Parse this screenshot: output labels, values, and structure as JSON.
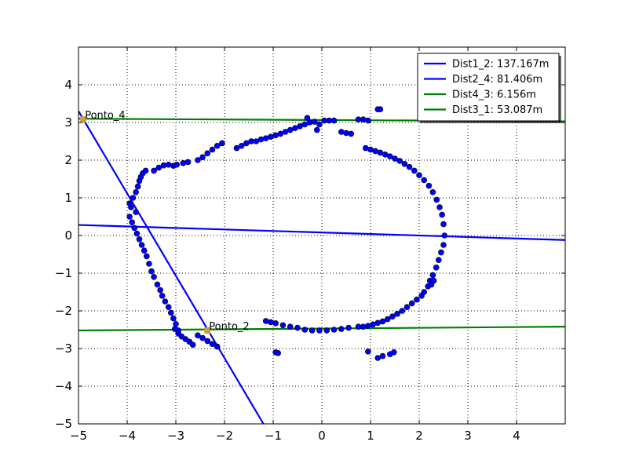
{
  "chart_data": {
    "type": "scatter",
    "title": "",
    "xlabel": "",
    "ylabel": "",
    "xlim": [
      -5,
      5
    ],
    "ylim": [
      -5,
      5
    ],
    "x_ticks": [
      -5,
      -4,
      -3,
      -2,
      -1,
      0,
      1,
      2,
      3,
      4
    ],
    "y_ticks": [
      -5,
      -4,
      -3,
      -2,
      -1,
      0,
      1,
      2,
      3,
      4
    ],
    "grid": true,
    "legend_position": "top-right",
    "colors": {
      "points": "#0000ff",
      "blue_lines": "#0000ff",
      "green_lines": "#008000",
      "markers": "#c8a040"
    },
    "lines": [
      {
        "name": "Dist1_2: 137.167m",
        "color": "#0000ff",
        "points": [
          [
            -5.0,
            0.28
          ],
          [
            5.0,
            -0.12
          ]
        ]
      },
      {
        "name": "Dist2_4: 81.406m",
        "color": "#0000ff",
        "points": [
          [
            -5.0,
            3.3
          ],
          [
            -1.2,
            -5.0
          ]
        ]
      },
      {
        "name": "Dist4_3: 6.156m",
        "color": "#008000",
        "points": [
          [
            -5.0,
            3.1
          ],
          [
            5.0,
            3.03
          ]
        ]
      },
      {
        "name": "Dist3_1: 53.087m",
        "color": "#008000",
        "points": [
          [
            -5.0,
            -2.52
          ],
          [
            5.0,
            -2.42
          ]
        ]
      }
    ],
    "annotations": [
      {
        "text": "Ponto_4",
        "x": -4.9,
        "y": 3.08
      },
      {
        "text": "Ponto_2",
        "x": -2.35,
        "y": -2.52
      }
    ],
    "scatter_points": [
      [
        -3.92,
        0.75
      ],
      [
        -3.95,
        0.85
      ],
      [
        -3.88,
        1.0
      ],
      [
        -3.82,
        1.15
      ],
      [
        -3.78,
        1.3
      ],
      [
        -3.75,
        1.45
      ],
      [
        -3.72,
        1.55
      ],
      [
        -3.68,
        1.65
      ],
      [
        -3.62,
        1.72
      ],
      [
        -3.45,
        1.72
      ],
      [
        -3.35,
        1.8
      ],
      [
        -3.25,
        1.86
      ],
      [
        -3.15,
        1.88
      ],
      [
        -3.05,
        1.85
      ],
      [
        -2.98,
        1.88
      ],
      [
        -2.85,
        1.92
      ],
      [
        -2.75,
        1.95
      ],
      [
        -2.55,
        2.0
      ],
      [
        -2.45,
        2.08
      ],
      [
        -2.35,
        2.18
      ],
      [
        -2.25,
        2.28
      ],
      [
        -2.15,
        2.38
      ],
      [
        -2.05,
        2.45
      ],
      [
        -1.75,
        2.32
      ],
      [
        -1.65,
        2.38
      ],
      [
        -1.55,
        2.45
      ],
      [
        -1.45,
        2.5
      ],
      [
        -1.35,
        2.5
      ],
      [
        -1.25,
        2.55
      ],
      [
        -1.15,
        2.58
      ],
      [
        -1.05,
        2.62
      ],
      [
        -0.95,
        2.66
      ],
      [
        -0.85,
        2.7
      ],
      [
        -0.75,
        2.75
      ],
      [
        -0.65,
        2.8
      ],
      [
        -0.55,
        2.85
      ],
      [
        -0.45,
        2.9
      ],
      [
        -0.35,
        2.95
      ],
      [
        -0.25,
        3.0
      ],
      [
        -0.15,
        3.02
      ],
      [
        -0.05,
        2.95
      ],
      [
        0.05,
        3.05
      ],
      [
        0.15,
        3.05
      ],
      [
        0.25,
        3.05
      ],
      [
        -0.3,
        3.12
      ],
      [
        0.4,
        2.75
      ],
      [
        0.5,
        2.72
      ],
      [
        0.6,
        2.7
      ],
      [
        0.75,
        3.08
      ],
      [
        0.85,
        3.08
      ],
      [
        0.95,
        3.05
      ],
      [
        1.15,
        3.35
      ],
      [
        1.2,
        3.35
      ],
      [
        -0.1,
        2.8
      ],
      [
        0.9,
        2.32
      ],
      [
        1.0,
        2.28
      ],
      [
        1.1,
        2.24
      ],
      [
        1.2,
        2.2
      ],
      [
        1.3,
        2.15
      ],
      [
        1.4,
        2.1
      ],
      [
        1.5,
        2.04
      ],
      [
        1.6,
        1.98
      ],
      [
        1.7,
        1.9
      ],
      [
        1.8,
        1.82
      ],
      [
        1.9,
        1.72
      ],
      [
        2.0,
        1.6
      ],
      [
        2.1,
        1.47
      ],
      [
        2.2,
        1.32
      ],
      [
        2.28,
        1.15
      ],
      [
        2.36,
        0.95
      ],
      [
        2.42,
        0.75
      ],
      [
        2.47,
        0.55
      ],
      [
        2.5,
        0.3
      ],
      [
        2.52,
        0.0
      ],
      [
        2.5,
        -0.25
      ],
      [
        2.45,
        -0.45
      ],
      [
        2.4,
        -0.65
      ],
      [
        2.35,
        -0.85
      ],
      [
        2.28,
        -1.05
      ],
      [
        2.22,
        -1.2
      ],
      [
        2.18,
        -1.35
      ],
      [
        2.1,
        -1.5
      ],
      [
        2.3,
        -1.2
      ],
      [
        2.25,
        -1.3
      ],
      [
        2.05,
        -1.6
      ],
      [
        1.95,
        -1.7
      ],
      [
        1.85,
        -1.8
      ],
      [
        1.75,
        -1.9
      ],
      [
        1.65,
        -2.0
      ],
      [
        1.55,
        -2.08
      ],
      [
        1.45,
        -2.15
      ],
      [
        1.35,
        -2.22
      ],
      [
        1.25,
        -2.28
      ],
      [
        1.15,
        -2.32
      ],
      [
        1.05,
        -2.36
      ],
      [
        0.95,
        -2.4
      ],
      [
        0.85,
        -2.42
      ],
      [
        0.75,
        -2.42
      ],
      [
        0.55,
        -2.45
      ],
      [
        0.4,
        -2.48
      ],
      [
        0.25,
        -2.5
      ],
      [
        0.1,
        -2.52
      ],
      [
        -0.05,
        -2.52
      ],
      [
        -0.2,
        -2.52
      ],
      [
        -0.35,
        -2.5
      ],
      [
        -0.5,
        -2.45
      ],
      [
        -0.65,
        -2.42
      ],
      [
        -0.8,
        -2.38
      ],
      [
        -0.95,
        -2.33
      ],
      [
        -1.05,
        -2.3
      ],
      [
        -1.15,
        -2.27
      ],
      [
        0.95,
        -3.08
      ],
      [
        1.15,
        -3.25
      ],
      [
        1.25,
        -3.2
      ],
      [
        1.4,
        -3.15
      ],
      [
        1.48,
        -3.1
      ],
      [
        -0.95,
        -3.1
      ],
      [
        -0.9,
        -3.12
      ],
      [
        -2.15,
        -2.95
      ],
      [
        -2.25,
        -2.88
      ],
      [
        -2.35,
        -2.8
      ],
      [
        -2.45,
        -2.72
      ],
      [
        -2.55,
        -2.65
      ],
      [
        -2.65,
        -2.9
      ],
      [
        -2.72,
        -2.82
      ],
      [
        -2.8,
        -2.75
      ],
      [
        -2.88,
        -2.68
      ],
      [
        -2.95,
        -2.6
      ],
      [
        -2.95,
        -2.52
      ],
      [
        -3.02,
        -2.48
      ],
      [
        -3.0,
        -2.35
      ],
      [
        -3.05,
        -2.2
      ],
      [
        -3.1,
        -2.05
      ],
      [
        -3.15,
        -1.9
      ],
      [
        -3.22,
        -1.75
      ],
      [
        -3.28,
        -1.6
      ],
      [
        -3.32,
        -1.45
      ],
      [
        -3.38,
        -1.3
      ],
      [
        -3.45,
        -1.1
      ],
      [
        -3.5,
        -0.95
      ],
      [
        -3.55,
        -0.75
      ],
      [
        -3.6,
        -0.55
      ],
      [
        -3.65,
        -0.4
      ],
      [
        -3.7,
        -0.25
      ],
      [
        -3.75,
        -0.1
      ],
      [
        -3.8,
        0.05
      ],
      [
        -3.85,
        0.2
      ],
      [
        -3.9,
        0.35
      ],
      [
        -3.95,
        0.5
      ],
      [
        -3.82,
        0.62
      ]
    ]
  }
}
